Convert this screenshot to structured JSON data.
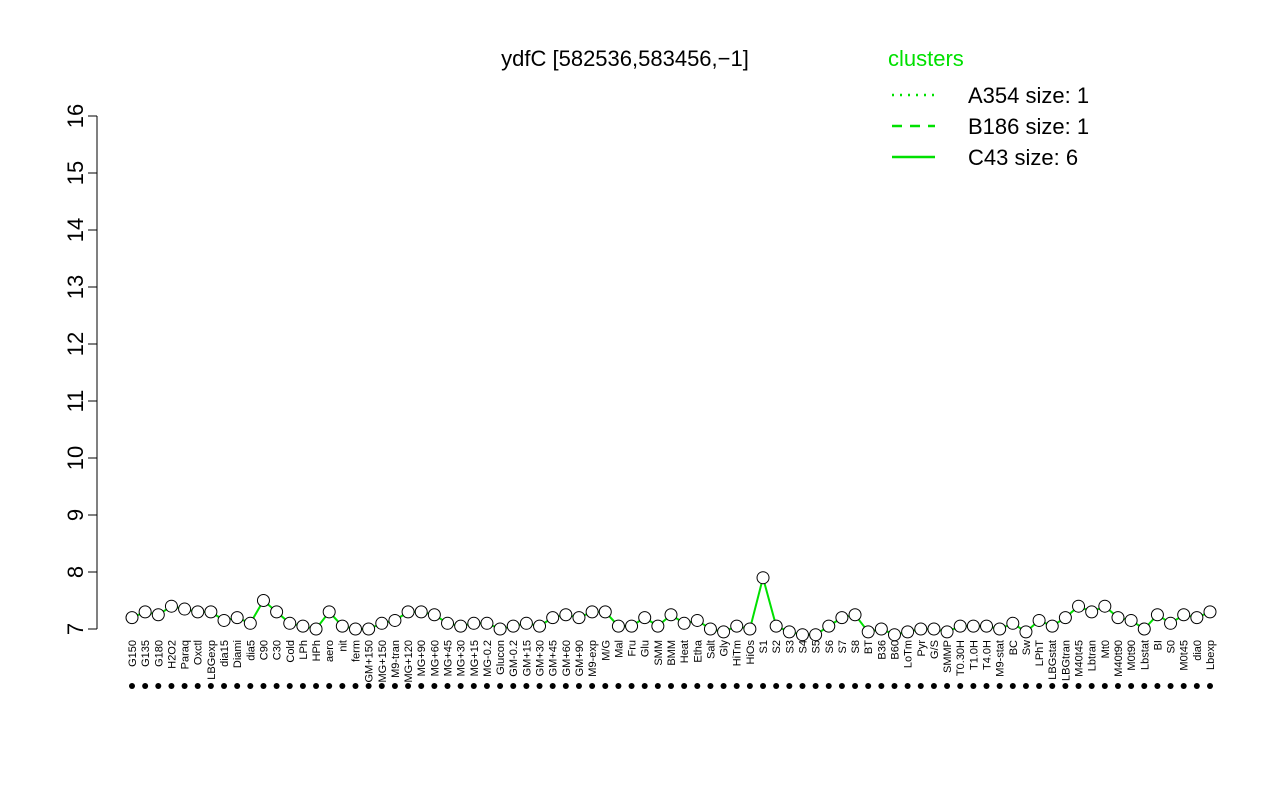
{
  "chart_data": {
    "type": "line",
    "title": "ydfC [582536,583456,−1]",
    "legend_title": "clusters",
    "legend": [
      {
        "label": "A354 size: 1",
        "dash": "dotted"
      },
      {
        "label": "B186 size: 1",
        "dash": "dashed"
      },
      {
        "label": "C43 size: 6",
        "dash": "solid"
      }
    ],
    "legend_position": "top-right",
    "line_color": "#00e000",
    "categories": [
      "G150",
      "G135",
      "G180",
      "H2O2",
      "Paraq",
      "Oxctl",
      "LBGexp",
      "dia15",
      "Diami",
      "dia5",
      "C90",
      "C30",
      "Cold",
      "LPh",
      "HPh",
      "aero",
      "nit",
      "ferm",
      "GM+150",
      "MG+150",
      "M9-tran",
      "MG+120",
      "MG+90",
      "MG+60",
      "MG+45",
      "MG+30",
      "MG+15",
      "MG-0.2",
      "Glucon",
      "GM-0.2",
      "GM+15",
      "GM+30",
      "GM+45",
      "GM+60",
      "GM+90",
      "M9-exp",
      "M/G",
      "Mal",
      "Fru",
      "Glu",
      "SMM",
      "BMM",
      "Heat",
      "Etha",
      "Salt",
      "Gly",
      "HiTm",
      "HiOs",
      "S1",
      "S2",
      "S3",
      "S4",
      "S5",
      "S6",
      "S7",
      "S8",
      "BT",
      "B36",
      "B60",
      "LoTm",
      "Pyr",
      "G/S",
      "SMMP",
      "T0.30H",
      "T1.0H",
      "T4.0H",
      "M9-stat",
      "BC",
      "Sw",
      "LPhT",
      "LBGstat",
      "LBGtran",
      "M40t45",
      "Lbtran",
      "Mt0",
      "M40t90",
      "M0t90",
      "Lbstat",
      "BI",
      "S0",
      "M0t45",
      "dia0",
      "Lbexp"
    ],
    "values": [
      7.2,
      7.3,
      7.25,
      7.4,
      7.35,
      7.3,
      7.3,
      7.15,
      7.2,
      7.1,
      7.5,
      7.3,
      7.1,
      7.05,
      7.0,
      7.3,
      7.05,
      7.0,
      7.0,
      7.1,
      7.15,
      7.3,
      7.3,
      7.25,
      7.1,
      7.05,
      7.1,
      7.1,
      7.0,
      7.05,
      7.1,
      7.05,
      7.2,
      7.25,
      7.2,
      7.3,
      7.3,
      7.05,
      7.05,
      7.2,
      7.05,
      7.25,
      7.1,
      7.15,
      7.0,
      6.95,
      7.05,
      7.0,
      7.9,
      7.05,
      6.95,
      6.9,
      6.9,
      7.05,
      7.2,
      7.25,
      6.95,
      7.0,
      6.9,
      6.95,
      7.0,
      7.0,
      6.95,
      7.05,
      7.05,
      7.05,
      7.0,
      7.1,
      6.95,
      7.15,
      7.05,
      7.2,
      7.4,
      7.3,
      7.4,
      7.2,
      7.15,
      7.0,
      7.25,
      7.1,
      7.25,
      7.2,
      7.3
    ],
    "ylim": [
      7,
      16
    ],
    "yticks": [
      7,
      8,
      9,
      10,
      11,
      12,
      13,
      14,
      15,
      16
    ]
  }
}
